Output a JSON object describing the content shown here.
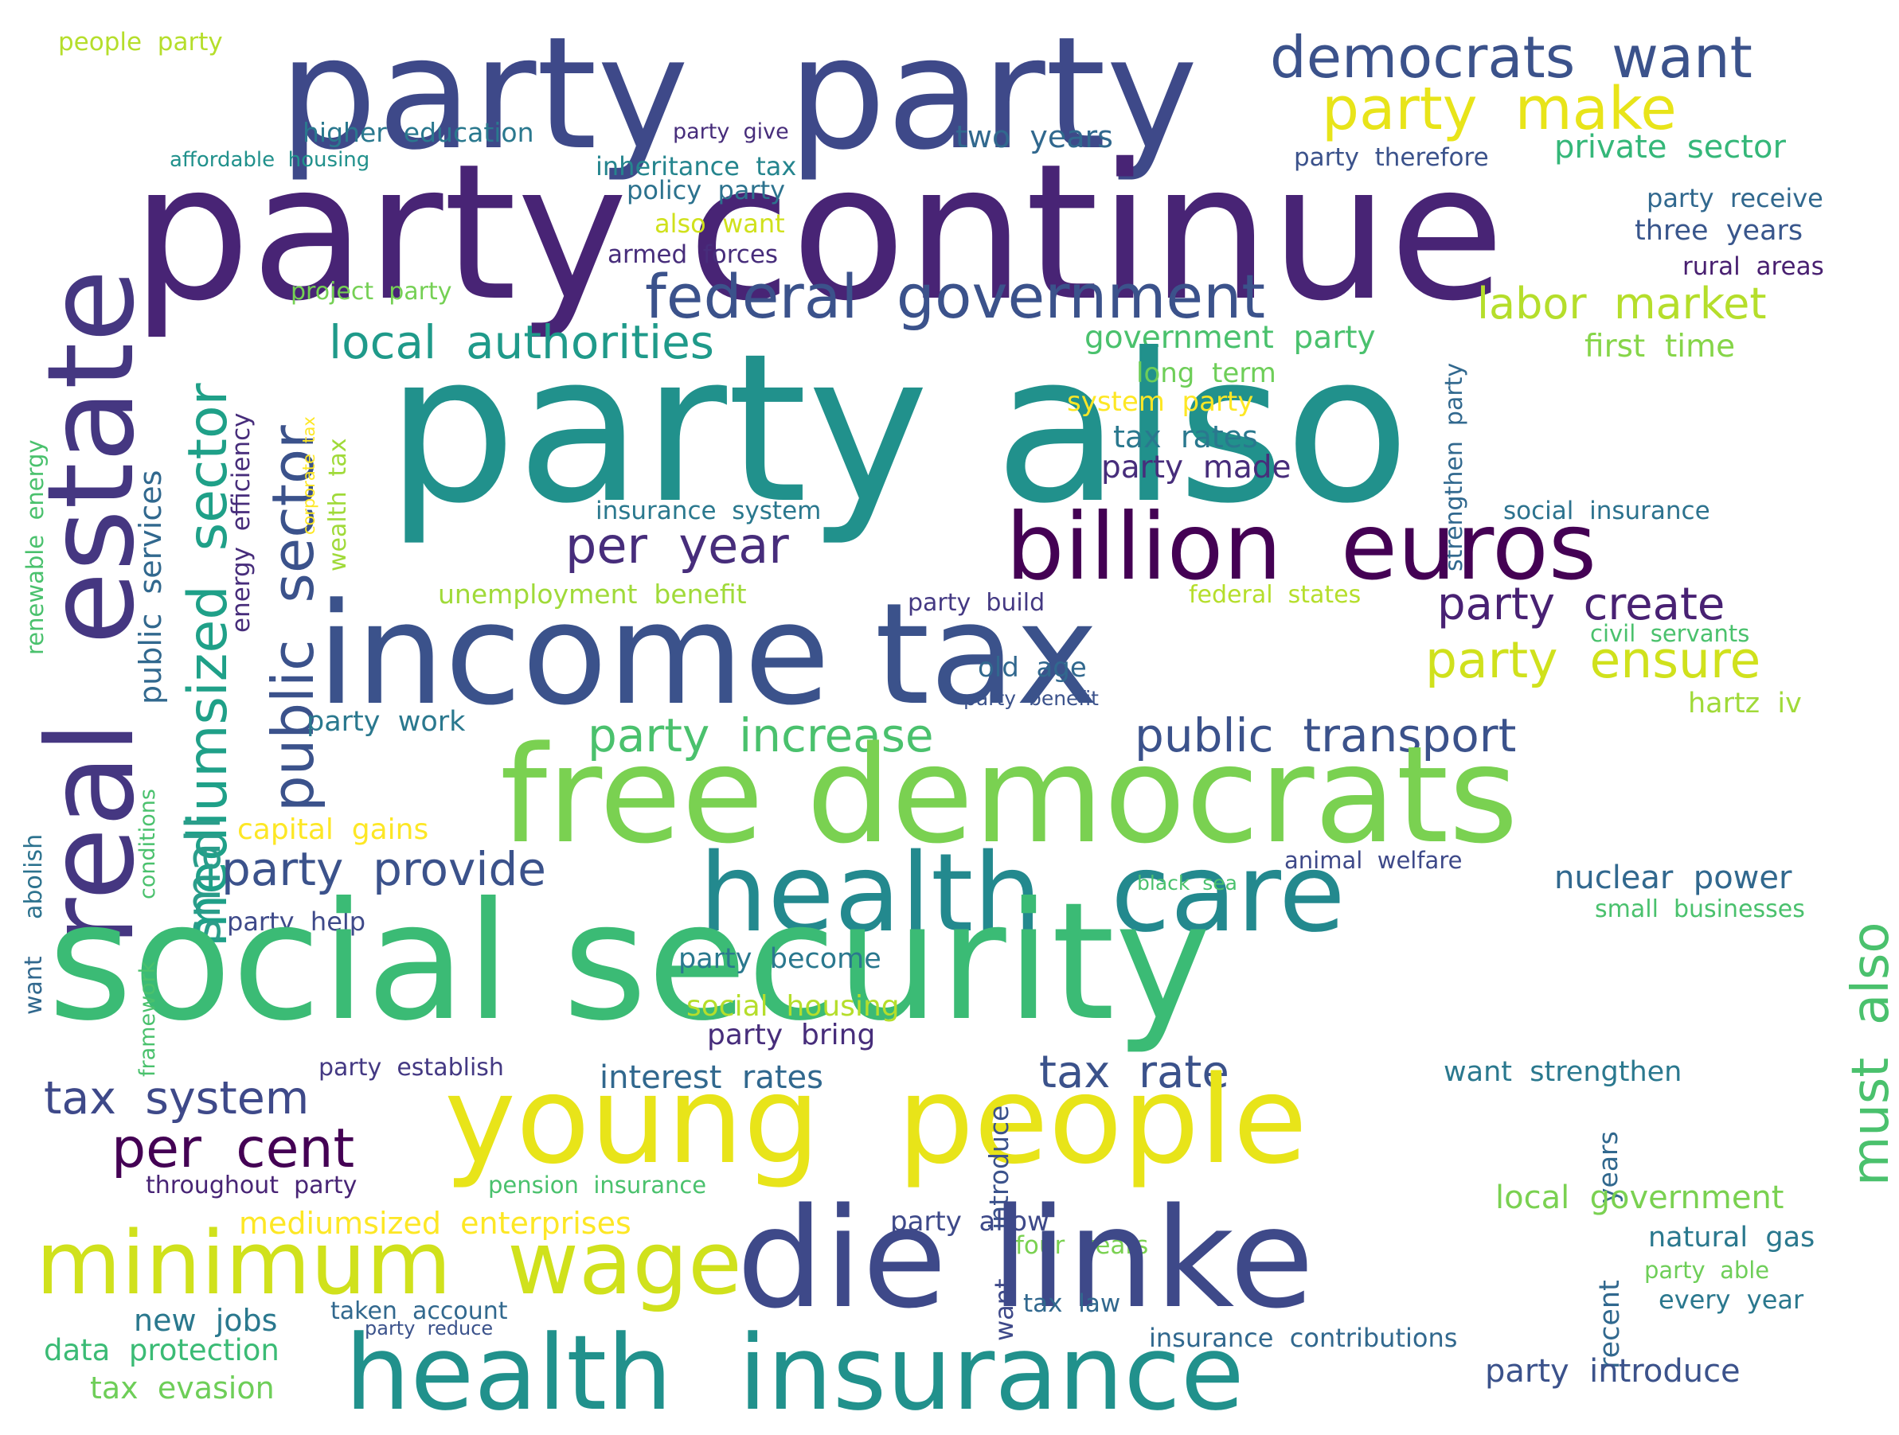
{
  "phrases": [
    {
      "id": "people-party",
      "text": "people  party",
      "color": "#b5de2b"
    },
    {
      "id": "party-party",
      "text": "party  party",
      "color": "#3e4989"
    },
    {
      "id": "democrats-want",
      "text": "democrats  want",
      "color": "#3b528b"
    },
    {
      "id": "party-make",
      "text": "party  make",
      "color": "#e8e419"
    },
    {
      "id": "higher-education",
      "text": "higher  education",
      "color": "#2a788e"
    },
    {
      "id": "party-give",
      "text": "party  give",
      "color": "#472d7b"
    },
    {
      "id": "two-years",
      "text": "two  years",
      "color": "#31688e"
    },
    {
      "id": "affordable-housing",
      "text": "affordable  housing",
      "color": "#21918c"
    },
    {
      "id": "party-continue",
      "text": "party continue",
      "color": "#482475"
    },
    {
      "id": "inheritance-tax",
      "text": "inheritance  tax",
      "color": "#25858e"
    },
    {
      "id": "party-therefore",
      "text": "party  therefore",
      "color": "#3b528b"
    },
    {
      "id": "private-sector",
      "text": "private  sector",
      "color": "#35b779"
    },
    {
      "id": "policy-party",
      "text": "policy  party",
      "color": "#2c728e"
    },
    {
      "id": "party-receive",
      "text": "party  receive",
      "color": "#31688e"
    },
    {
      "id": "also-want",
      "text": "also  want",
      "color": "#d0e11c"
    },
    {
      "id": "three-years",
      "text": "three  years",
      "color": "#39568c"
    },
    {
      "id": "armed-forces",
      "text": "armed  forces",
      "color": "#472d7b"
    },
    {
      "id": "rural-areas",
      "text": "rural  areas",
      "color": "#481f70"
    },
    {
      "id": "real-estate",
      "text": "real  estate",
      "color": "#453781"
    },
    {
      "id": "mediumsized-sector",
      "text": "mediumsized  sector",
      "color": "#1fa088"
    },
    {
      "id": "federal-government",
      "text": "federal  government",
      "color": "#3b528b"
    },
    {
      "id": "project-party",
      "text": "project  party",
      "color": "#75d054"
    },
    {
      "id": "labor-market",
      "text": "labor  market",
      "color": "#b5de2b"
    },
    {
      "id": "strengthen-party",
      "text": "strengthen  party",
      "color": "#31688e"
    },
    {
      "id": "government-party",
      "text": "government  party",
      "color": "#4ac16d"
    },
    {
      "id": "first-time",
      "text": "first  time",
      "color": "#86d549"
    },
    {
      "id": "energy-efficiency",
      "text": "energy  efficiency",
      "color": "#472d7b"
    },
    {
      "id": "local-authorities",
      "text": "local  authorities",
      "color": "#1f9a8a"
    },
    {
      "id": "party-also",
      "text": "party also",
      "color": "#21918c"
    },
    {
      "id": "long-term",
      "text": "long  term",
      "color": "#6ece58"
    },
    {
      "id": "public-sector",
      "text": "public  sector",
      "color": "#3b528b"
    },
    {
      "id": "system-party",
      "text": "system  party",
      "color": "#fde725"
    },
    {
      "id": "tax-rates",
      "text": "tax  rates",
      "color": "#2a788e"
    },
    {
      "id": "renewable-energy",
      "text": "renewable  energy",
      "color": "#4ac16d"
    },
    {
      "id": "corporate-tax",
      "text": "corporate  tax",
      "color": "#fde725"
    },
    {
      "id": "wealth-tax",
      "text": "wealth  tax",
      "color": "#a0da39"
    },
    {
      "id": "party-made",
      "text": "party  made",
      "color": "#472d7b"
    },
    {
      "id": "public-services",
      "text": "public  services",
      "color": "#31688e"
    },
    {
      "id": "insurance-system",
      "text": "insurance  system",
      "color": "#2a788e"
    },
    {
      "id": "social-insurance",
      "text": "social  insurance",
      "color": "#2c728e"
    },
    {
      "id": "per-year",
      "text": "per  year",
      "color": "#472d7b"
    },
    {
      "id": "billion-euros",
      "text": "billion  euros",
      "color": "#440154"
    },
    {
      "id": "unemployment-benefit",
      "text": "unemployment  benefit",
      "color": "#a0da39"
    },
    {
      "id": "party-build",
      "text": "party  build",
      "color": "#443983"
    },
    {
      "id": "federal-states",
      "text": "federal  states",
      "color": "#b5de2b"
    },
    {
      "id": "income-tax",
      "text": "income tax",
      "color": "#3b528b"
    },
    {
      "id": "party-create",
      "text": "party  create",
      "color": "#482173"
    },
    {
      "id": "civil-servants",
      "text": "civil  servants",
      "color": "#4ac16d"
    },
    {
      "id": "party-ensure",
      "text": "party  ensure",
      "color": "#d0e11c"
    },
    {
      "id": "old-age",
      "text": "old  age",
      "color": "#31688e"
    },
    {
      "id": "party-benefit",
      "text": "party  benefit",
      "color": "#3b528b"
    },
    {
      "id": "hartz-iv",
      "text": "hartz  iv",
      "color": "#a0da39"
    },
    {
      "id": "party-work",
      "text": "party  work",
      "color": "#2a788e"
    },
    {
      "id": "party-increase",
      "text": "party  increase",
      "color": "#4ac16d"
    },
    {
      "id": "public-transport",
      "text": "public  transport",
      "color": "#3b528b"
    },
    {
      "id": "free-democrats",
      "text": "free democrats",
      "color": "#7ad151"
    },
    {
      "id": "small",
      "text": "small",
      "color": "#2a9d8a"
    },
    {
      "id": "capital-gains",
      "text": "capital  gains",
      "color": "#fde725"
    },
    {
      "id": "abolish",
      "text": "abolish",
      "color": "#2c728e"
    },
    {
      "id": "conditions",
      "text": "conditions",
      "color": "#4ac16d"
    },
    {
      "id": "party-provide",
      "text": "party  provide",
      "color": "#3b528b"
    },
    {
      "id": "health-care",
      "text": "health  care",
      "color": "#23898e"
    },
    {
      "id": "animal-welfare",
      "text": "animal  welfare",
      "color": "#3e4989"
    },
    {
      "id": "black-sea",
      "text": "black  sea",
      "color": "#4ac16d"
    },
    {
      "id": "nuclear-power",
      "text": "nuclear  power",
      "color": "#31688e"
    },
    {
      "id": "party-help",
      "text": "party  help",
      "color": "#3e4989"
    },
    {
      "id": "small-businesses",
      "text": "small  businesses",
      "color": "#4ac16d"
    },
    {
      "id": "social-security",
      "text": "social security",
      "color": "#3bbb75"
    },
    {
      "id": "framework",
      "text": "framework",
      "color": "#4ac16d"
    },
    {
      "id": "want",
      "text": "want",
      "color": "#31688e"
    },
    {
      "id": "party-become",
      "text": "party  become",
      "color": "#2a788e"
    },
    {
      "id": "social-housing",
      "text": "social  housing",
      "color": "#b5de2b"
    },
    {
      "id": "party-bring",
      "text": "party  bring",
      "color": "#472d7b"
    },
    {
      "id": "must-also",
      "text": "must  also",
      "color": "#4ac16d"
    },
    {
      "id": "party-establish",
      "text": "party  establish",
      "color": "#443983"
    },
    {
      "id": "interest-rates",
      "text": "interest  rates",
      "color": "#31688e"
    },
    {
      "id": "tax-rate",
      "text": "tax  rate",
      "color": "#3b528b"
    },
    {
      "id": "want-strengthen",
      "text": "want  strengthen",
      "color": "#2a788e"
    },
    {
      "id": "tax-system",
      "text": "tax  system",
      "color": "#3e4989"
    },
    {
      "id": "young-people",
      "text": "young  people",
      "color": "#e8e419"
    },
    {
      "id": "introduce",
      "text": "introduce",
      "color": "#3b528b"
    },
    {
      "id": "years",
      "text": "years",
      "color": "#31688e"
    },
    {
      "id": "per-cent",
      "text": "per  cent",
      "color": "#440154"
    },
    {
      "id": "throughout-party",
      "text": "throughout  party",
      "color": "#482475"
    },
    {
      "id": "pension-insurance",
      "text": "pension  insurance",
      "color": "#4ac16d"
    },
    {
      "id": "local-government",
      "text": "local  government",
      "color": "#7ad151"
    },
    {
      "id": "mediumsized-enterprises",
      "text": "mediumsized  enterprises",
      "color": "#fde725"
    },
    {
      "id": "party-allow",
      "text": "party  allow",
      "color": "#3e4989"
    },
    {
      "id": "four-years",
      "text": "four  years",
      "color": "#7ad151"
    },
    {
      "id": "natural-gas",
      "text": "natural  gas",
      "color": "#2a788e"
    },
    {
      "id": "minimum-wage",
      "text": "minimum  wage",
      "color": "#d0e11c"
    },
    {
      "id": "die-linke",
      "text": "die linke",
      "color": "#3e4989"
    },
    {
      "id": "party-able",
      "text": "party  able",
      "color": "#6ece58"
    },
    {
      "id": "recent",
      "text": "recent",
      "color": "#31688e"
    },
    {
      "id": "new-jobs",
      "text": "new  jobs",
      "color": "#2a788e"
    },
    {
      "id": "taken-account",
      "text": "taken  account",
      "color": "#31688e"
    },
    {
      "id": "tax-law",
      "text": "tax  law",
      "color": "#31688e"
    },
    {
      "id": "every-year",
      "text": "every  year",
      "color": "#2a788e"
    },
    {
      "id": "want-vert",
      "text": "want",
      "color": "#3e4989"
    },
    {
      "id": "party-reduce",
      "text": "party  reduce",
      "color": "#3b528b"
    },
    {
      "id": "insurance-contributions",
      "text": "insurance  contributions",
      "color": "#31688e"
    },
    {
      "id": "data-protection",
      "text": "data  protection",
      "color": "#3bbb75"
    },
    {
      "id": "party-introduce",
      "text": "party  introduce",
      "color": "#3b528b"
    },
    {
      "id": "tax-evasion",
      "text": "tax  evasion",
      "color": "#6ece58"
    },
    {
      "id": "health-insurance",
      "text": "health  insurance",
      "color": "#21918c"
    }
  ]
}
